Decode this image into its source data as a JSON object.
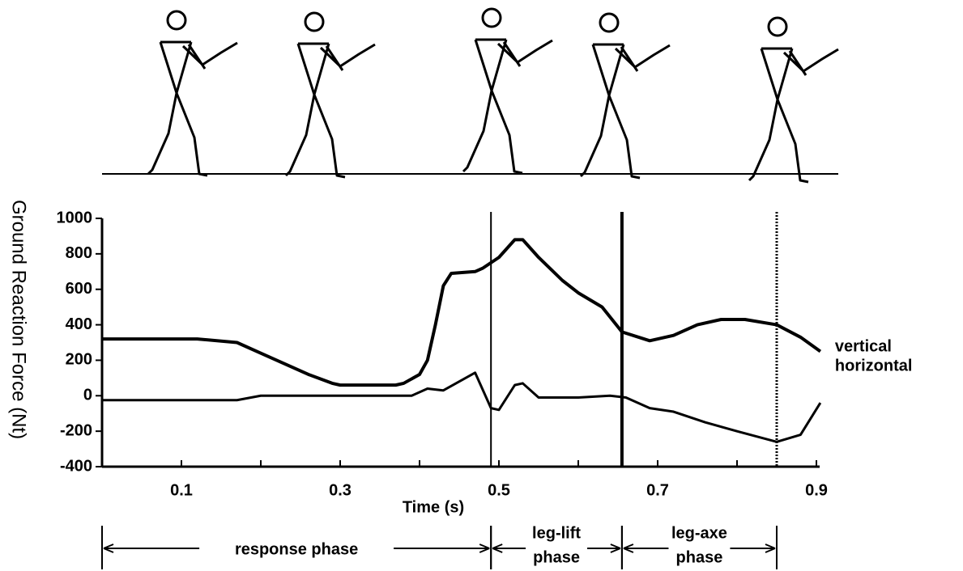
{
  "chart_data": {
    "type": "line",
    "y_label": "Ground Reaction Force (Nt)",
    "x_label": "Time (s)",
    "xlim": [
      0,
      0.9
    ],
    "xticks": [
      0.1,
      0.3,
      0.5,
      0.7,
      0.9
    ],
    "minor_xticks": [
      0.2,
      0.4,
      0.6,
      0.8
    ],
    "ylim": [
      -400,
      1000
    ],
    "yticks": [
      1000,
      800,
      600,
      400,
      200,
      0,
      -200,
      -400
    ],
    "series": [
      {
        "name": "vertical",
        "color": "#000000",
        "x": [
          0,
          0.12,
          0.17,
          0.2,
          0.23,
          0.26,
          0.29,
          0.3,
          0.37,
          0.38,
          0.4,
          0.41,
          0.42,
          0.43,
          0.44,
          0.47,
          0.48,
          0.5,
          0.52,
          0.53,
          0.55,
          0.58,
          0.6,
          0.63,
          0.655,
          0.69,
          0.72,
          0.75,
          0.78,
          0.81,
          0.85,
          0.88,
          0.905
        ],
        "values": [
          320,
          320,
          300,
          240,
          180,
          120,
          70,
          60,
          60,
          70,
          120,
          200,
          400,
          620,
          690,
          700,
          720,
          780,
          880,
          880,
          780,
          650,
          580,
          500,
          360,
          310,
          340,
          400,
          430,
          430,
          400,
          330,
          250
        ]
      },
      {
        "name": "horizontal",
        "color": "#000000",
        "x": [
          0,
          0.17,
          0.2,
          0.39,
          0.41,
          0.43,
          0.47,
          0.49,
          0.5,
          0.52,
          0.53,
          0.55,
          0.6,
          0.64,
          0.66,
          0.69,
          0.72,
          0.76,
          0.8,
          0.85,
          0.88,
          0.905
        ],
        "values": [
          -25,
          -25,
          0,
          0,
          40,
          30,
          130,
          -70,
          -80,
          60,
          70,
          -10,
          -10,
          0,
          -10,
          -70,
          -90,
          -150,
          -200,
          -260,
          -220,
          -40
        ]
      }
    ],
    "event_lines": [
      {
        "x": 0.49,
        "style": "thin"
      },
      {
        "x": 0.655,
        "style": "thick"
      },
      {
        "x": 0.85,
        "style": "dotted"
      }
    ],
    "phases": [
      {
        "label": [
          "response phase"
        ],
        "start": 0,
        "end": 0.49
      },
      {
        "label": [
          "leg-lift",
          "phase"
        ],
        "start": 0.49,
        "end": 0.655
      },
      {
        "label": [
          "leg-axe",
          "phase"
        ],
        "start": 0.655,
        "end": 0.85
      }
    ]
  }
}
